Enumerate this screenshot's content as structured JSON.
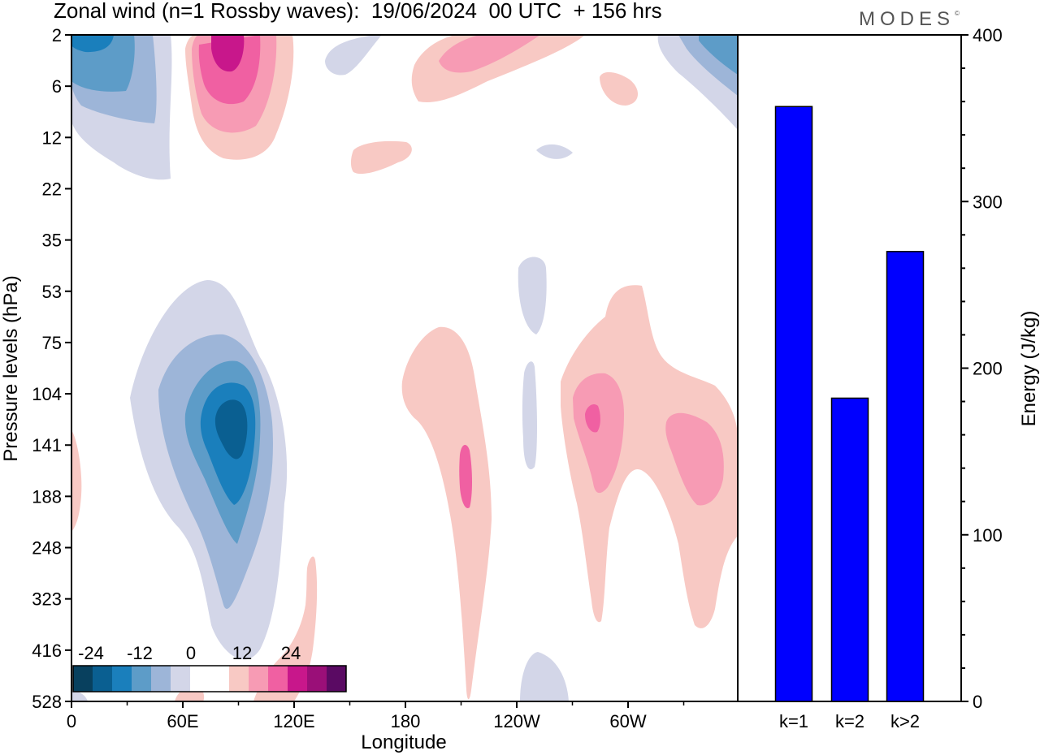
{
  "title": "Zonal wind (n=1 Rossby waves):  19/06/2024  00 UTC  + 156 hrs",
  "brand": "MODES",
  "brand_mark": "©",
  "colors": {
    "neg": [
      "#08405e",
      "#0a5f91",
      "#1a7fbc",
      "#5d9cc8",
      "#9db5d8",
      "#d3d6e8"
    ],
    "pos": [
      "#f8c9c4",
      "#f79bb4",
      "#f060a2",
      "#c8178b",
      "#9a0f78",
      "#5a0a63"
    ],
    "bar": "#0000ff"
  },
  "chart_data": [
    {
      "type": "heatmap",
      "title": "Zonal wind (n=1 Rossby waves):  19/06/2024  00 UTC  + 156 hrs",
      "xlabel": "Longitude",
      "ylabel": "Pressure levels (hPa)",
      "x_ticks": [
        "0",
        "60E",
        "120E",
        "180",
        "120W",
        "60W"
      ],
      "y_ticks": [
        "2",
        "6",
        "12",
        "22",
        "35",
        "53",
        "75",
        "104",
        "141",
        "188",
        "248",
        "323",
        "416",
        "528"
      ],
      "colorbar": {
        "labels": [
          "-24",
          "-12",
          "0",
          "12",
          "24"
        ],
        "levels": [
          -24,
          -12,
          0,
          12,
          24
        ]
      },
      "features": [
        {
          "sign": "neg",
          "peak": -24,
          "lon": 85,
          "level": 141
        },
        {
          "sign": "neg",
          "peak": -16,
          "lon": 10,
          "level": 2
        },
        {
          "sign": "neg",
          "peak": -12,
          "lon": 350,
          "level": 2
        },
        {
          "sign": "pos",
          "peak": 16,
          "lon": 82,
          "level": 2
        },
        {
          "sign": "pos",
          "peak": 12,
          "lon": 285,
          "level": 104
        },
        {
          "sign": "pos",
          "peak": 8,
          "lon": 335,
          "level": 141
        },
        {
          "sign": "pos",
          "peak": 8,
          "lon": 214,
          "level": 141
        },
        {
          "sign": "pos",
          "peak": 8,
          "lon": 225,
          "level": 2
        }
      ]
    },
    {
      "type": "bar",
      "categories": [
        "k=1",
        "k=2",
        "k>2"
      ],
      "values": [
        357,
        182,
        270
      ],
      "ylabel": "Energy (J/kg)",
      "ylim": [
        0,
        400
      ],
      "y_ticks": [
        "0",
        "100",
        "200",
        "300",
        "400"
      ]
    }
  ]
}
